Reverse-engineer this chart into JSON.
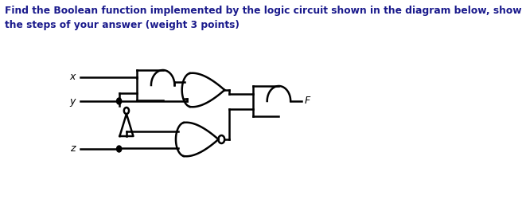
{
  "title_text": "Find the Boolean function implemented by the logic circuit shown in the diagram below, show\nthe steps of your answer (weight 3 points)",
  "title_color": "#1a1a8c",
  "background_color": "#ffffff",
  "line_color": "#000000",
  "inputs": [
    "x",
    "y",
    "z"
  ],
  "output": "F"
}
